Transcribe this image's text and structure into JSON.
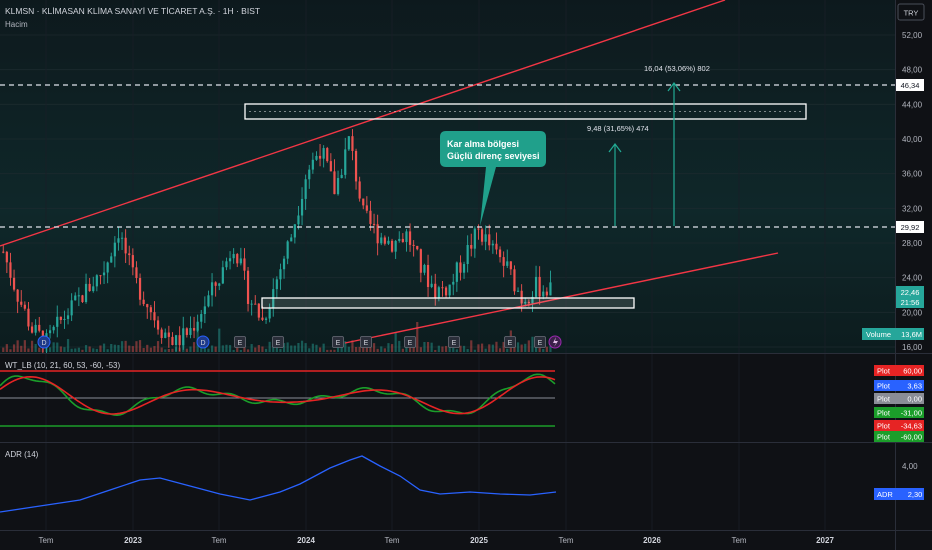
{
  "header": {
    "title": "KLMSN · KLİMASAN KLİMA SANAYİ VE TİCARET A.Ş. · 1H · BIST",
    "volume_label": "Hacim",
    "currency": "TRY"
  },
  "colors": {
    "background": "#0f1115",
    "up": "#26a69a",
    "down": "#ef5350",
    "channel": "#f23645",
    "annotation": "#22ab94",
    "wt_green": "#1b9e2a",
    "wt_red": "#e62424",
    "adr": "#2962ff"
  },
  "annotation": {
    "line1": "Kar alma bölgesi",
    "line2": "Güçlü direnç seviyesi"
  },
  "measures": [
    {
      "text": "16,04 (53,06%) 802"
    },
    {
      "text": "9,48 (31,65%) 474"
    }
  ],
  "price_axis": {
    "ticks": [
      "52,00",
      "48,00",
      "44,00",
      "40,00",
      "36,00",
      "32,00",
      "28,00",
      "24,00",
      "20,00",
      "16,00"
    ],
    "badge_high": "46,34",
    "badge_mid": "29,92",
    "badge_last": "22,46",
    "badge_countdown": "21:56",
    "volume_label": "Volume",
    "volume_value": "13,6M"
  },
  "wt": {
    "title": "WT_LB (10, 21, 60, 53, -60, -53)",
    "badges": [
      {
        "label": "Plot",
        "value": "60,00"
      },
      {
        "label": "Plot",
        "value": "3,63"
      },
      {
        "label": "Plot",
        "value": "0,00"
      },
      {
        "label": "Plot",
        "value": "-31,00"
      },
      {
        "label": "Plot",
        "value": "-34,63"
      },
      {
        "label": "Plot",
        "value": "-60,00"
      }
    ]
  },
  "adr": {
    "title": "ADR (14)",
    "tick": "4,00",
    "badge_label": "ADR",
    "badge_value": "2,30"
  },
  "time_axis": {
    "labels": [
      "Tem",
      "2023",
      "Tem",
      "2024",
      "Tem",
      "2025",
      "Tem",
      "2026",
      "Tem",
      "2027"
    ]
  },
  "events": [
    "D",
    "D",
    "E",
    "E",
    "E",
    "E",
    "E",
    "E",
    "E",
    "E"
  ],
  "chart_data": {
    "type": "candlestick",
    "title": "KLMSN · KLİMASAN KLİMA SANAYİ VE TİCARET A.Ş. · 1H · BIST",
    "y_range": [
      16,
      54
    ],
    "price_ticks": [
      52,
      48,
      44,
      40,
      36,
      32,
      28,
      24,
      20,
      16
    ],
    "levels": [
      46.34,
      29.92
    ],
    "last_price": 22.46,
    "wt_levels": [
      60,
      53,
      0,
      -53,
      -60
    ],
    "adr_last": 2.3,
    "close_series": [
      [
        "2022-04",
        27
      ],
      [
        "2022-05",
        22
      ],
      [
        "2022-06",
        18
      ],
      [
        "2022-07",
        16.5
      ],
      [
        "2022-08",
        19
      ],
      [
        "2022-09",
        21
      ],
      [
        "2022-10",
        23
      ],
      [
        "2022-11",
        25
      ],
      [
        "2022-12",
        29.5
      ],
      [
        "2023-01",
        24
      ],
      [
        "2023-02",
        21
      ],
      [
        "2023-03",
        18
      ],
      [
        "2023-04",
        16.5
      ],
      [
        "2023-05",
        18
      ],
      [
        "2023-06",
        21
      ],
      [
        "2023-07",
        24
      ],
      [
        "2023-08",
        28
      ],
      [
        "2023-09",
        22
      ],
      [
        "2023-10",
        19
      ],
      [
        "2023-11",
        24
      ],
      [
        "2023-12",
        29
      ],
      [
        "2024-01",
        36
      ],
      [
        "2024-02",
        39
      ],
      [
        "2024-03",
        34
      ],
      [
        "2024-04",
        40
      ],
      [
        "2024-05",
        31
      ],
      [
        "2024-06",
        29
      ],
      [
        "2024-07",
        28
      ],
      [
        "2024-08",
        29
      ],
      [
        "2024-09",
        25
      ],
      [
        "2024-10",
        22.5
      ],
      [
        "2024-11",
        23
      ],
      [
        "2024-12",
        26.5
      ],
      [
        "2025-01",
        29.5
      ],
      [
        "2025-02",
        27
      ],
      [
        "2025-03",
        25
      ],
      [
        "2025-04",
        21.5
      ],
      [
        "2025-05",
        23
      ],
      [
        "2025-06",
        22.46
      ]
    ]
  }
}
